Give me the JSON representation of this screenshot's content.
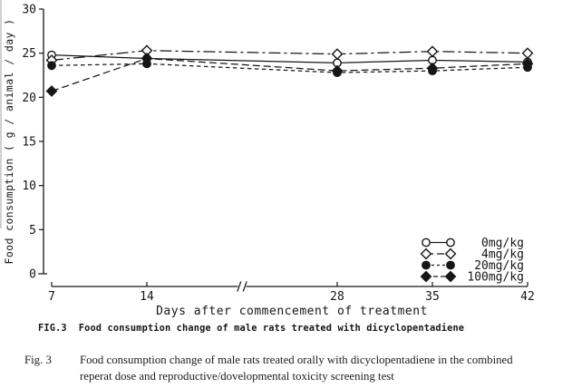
{
  "figure": {
    "plot_caption_label": "FIG.3",
    "plot_caption_text": "Food consumption change of male rats treated with dicyclopentadiene",
    "doc_caption_label": "Fig. 3",
    "doc_caption_line1": "Food consumption change of male rats treated orally with dicyclopentadiene in the combined",
    "doc_caption_line2": "reperat dose and reproductive/dovelopmental toxicity screening test"
  },
  "chart_data": {
    "type": "line",
    "title": "",
    "xlabel": "Days after commencement of treatment",
    "ylabel": "Food consumption ( g / animal / day )",
    "x": [
      7,
      14,
      28,
      35,
      42
    ],
    "xticks": [
      7,
      14,
      28,
      35,
      42
    ],
    "x_axis_break_at": 21,
    "yticks": [
      0,
      5,
      10,
      15,
      20,
      25,
      30
    ],
    "ylim": [
      0,
      30
    ],
    "grid": false,
    "legend_position": "lower right",
    "ink_color": "#161616",
    "background": "#ffffff",
    "series": [
      {
        "name": "0mg/kg",
        "marker": "circle-open",
        "line": "solid",
        "values": [
          24.8,
          24.4,
          23.9,
          24.2,
          24.0
        ]
      },
      {
        "name": "4mg/kg",
        "marker": "diamond-open",
        "line": "long-dash-dot",
        "values": [
          24.2,
          25.3,
          24.9,
          25.2,
          25.0
        ]
      },
      {
        "name": "20mg/kg",
        "marker": "circle-filled",
        "line": "dash-short",
        "values": [
          23.6,
          23.8,
          22.8,
          23.0,
          23.4
        ]
      },
      {
        "name": "100mg/kg",
        "marker": "diamond-filled",
        "line": "dash-medium",
        "values": [
          20.7,
          24.4,
          23.0,
          23.3,
          23.8
        ]
      }
    ]
  }
}
